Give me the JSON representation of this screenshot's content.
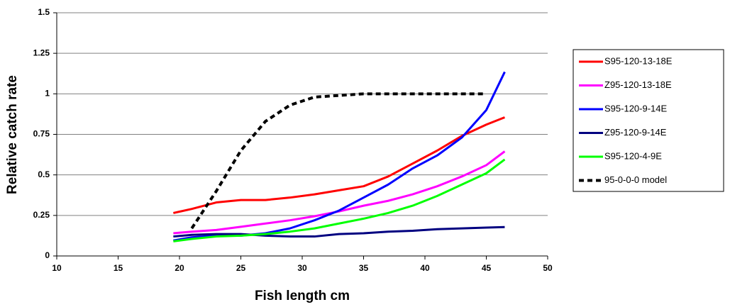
{
  "chart_data": {
    "type": "line",
    "x_label": "Fish length cm",
    "y_label": "Relative catch rate",
    "x": [
      19.5,
      21,
      23,
      25,
      27,
      29,
      31,
      33,
      35,
      37,
      39,
      41,
      43,
      45,
      46.5
    ],
    "series": [
      {
        "name": "S95-120-13-18E",
        "color": "#ff0000",
        "values": [
          0.265,
          0.29,
          0.33,
          0.345,
          0.345,
          0.36,
          0.38,
          0.405,
          0.43,
          0.49,
          0.57,
          0.65,
          0.74,
          0.81,
          0.855
        ]
      },
      {
        "name": "Z95-120-13-18E",
        "color": "#ff00ff",
        "values": [
          0.14,
          0.15,
          0.16,
          0.18,
          0.2,
          0.22,
          0.245,
          0.275,
          0.31,
          0.34,
          0.38,
          0.43,
          0.49,
          0.56,
          0.645
        ]
      },
      {
        "name": "S95-120-9-14E",
        "color": "#0000ff",
        "values": [
          0.095,
          0.115,
          0.125,
          0.125,
          0.14,
          0.17,
          0.22,
          0.28,
          0.36,
          0.44,
          0.54,
          0.62,
          0.73,
          0.9,
          1.135
        ]
      },
      {
        "name": "Z95-120-9-14E",
        "color": "#000080",
        "values": [
          0.12,
          0.13,
          0.135,
          0.135,
          0.125,
          0.12,
          0.12,
          0.135,
          0.14,
          0.15,
          0.155,
          0.165,
          0.17,
          0.175,
          0.178
        ]
      },
      {
        "name": "S95-120-4-9E",
        "color": "#00ff00",
        "values": [
          0.09,
          0.105,
          0.12,
          0.125,
          0.135,
          0.15,
          0.17,
          0.2,
          0.23,
          0.265,
          0.31,
          0.37,
          0.44,
          0.51,
          0.595
        ]
      },
      {
        "name": "95-0-0-0 model",
        "color": "#000000",
        "dashed": true,
        "values": [
          null,
          0.17,
          0.4,
          0.65,
          0.83,
          0.93,
          0.98,
          0.99,
          1,
          1,
          1,
          1,
          1,
          1,
          null
        ]
      }
    ],
    "xlim": [
      10,
      50
    ],
    "xticks": [
      10,
      15,
      20,
      25,
      30,
      35,
      40,
      45,
      50
    ],
    "ylim": [
      0,
      1.5
    ],
    "yticks": [
      0,
      0.25,
      0.5,
      0.75,
      1,
      1.25,
      1.5
    ],
    "grid": true,
    "legend": "right"
  }
}
